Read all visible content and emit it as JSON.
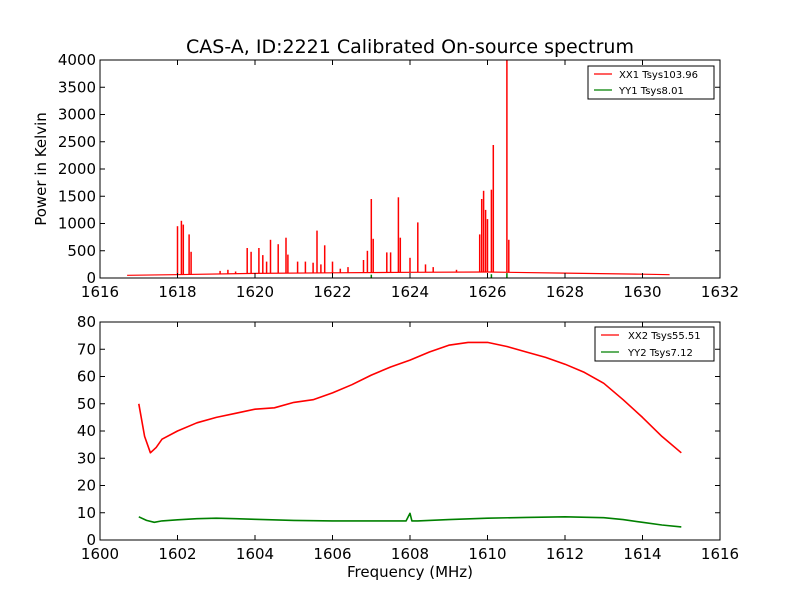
{
  "figure": {
    "title": "CAS-A, ID:2221 Calibrated On-source spectrum",
    "shared_xlabel": "Frequency (MHz)"
  },
  "colors": {
    "xx": "#ff0000",
    "yy": "#008000",
    "axis": "#000000",
    "background": "#ffffff"
  },
  "chart_data": [
    {
      "type": "line",
      "title": "CAS-A, ID:2221 Calibrated On-source spectrum",
      "ylabel": "Power in Kelvin",
      "xlabel": "",
      "xlim": [
        1616,
        1632
      ],
      "ylim": [
        0,
        4000
      ],
      "xticks": [
        "1616",
        "1618",
        "1620",
        "1622",
        "1624",
        "1626",
        "1628",
        "1630",
        "1632"
      ],
      "yticks": [
        "0",
        "500",
        "1000",
        "1500",
        "2000",
        "2500",
        "3000",
        "3500",
        "4000"
      ],
      "grid": false,
      "legend_position": "top-right",
      "baseline": [
        [
          1616.7,
          50
        ],
        [
          1617.9,
          60
        ],
        [
          1620,
          85
        ],
        [
          1622,
          95
        ],
        [
          1624,
          105
        ],
        [
          1626,
          110
        ],
        [
          1628,
          90
        ],
        [
          1630,
          70
        ],
        [
          1630.7,
          60
        ]
      ],
      "series": [
        {
          "name": "XX1 Tsys103.96",
          "color": "#ff0000",
          "peaks": [
            [
              1618.0,
              950
            ],
            [
              1618.1,
              1050
            ],
            [
              1618.15,
              980
            ],
            [
              1618.3,
              800
            ],
            [
              1618.35,
              480
            ],
            [
              1619.1,
              130
            ],
            [
              1619.3,
              150
            ],
            [
              1619.5,
              120
            ],
            [
              1619.8,
              550
            ],
            [
              1619.9,
              480
            ],
            [
              1620.1,
              550
            ],
            [
              1620.2,
              420
            ],
            [
              1620.3,
              300
            ],
            [
              1620.4,
              700
            ],
            [
              1620.6,
              620
            ],
            [
              1620.8,
              740
            ],
            [
              1620.85,
              430
            ],
            [
              1621.1,
              300
            ],
            [
              1621.3,
              300
            ],
            [
              1621.5,
              280
            ],
            [
              1621.6,
              870
            ],
            [
              1621.7,
              250
            ],
            [
              1621.8,
              600
            ],
            [
              1622.0,
              300
            ],
            [
              1622.2,
              170
            ],
            [
              1622.4,
              200
            ],
            [
              1622.8,
              330
            ],
            [
              1622.9,
              500
            ],
            [
              1623.0,
              1450
            ],
            [
              1623.05,
              720
            ],
            [
              1623.4,
              470
            ],
            [
              1623.5,
              470
            ],
            [
              1623.7,
              1480
            ],
            [
              1623.75,
              740
            ],
            [
              1624.0,
              370
            ],
            [
              1624.2,
              1020
            ],
            [
              1624.4,
              250
            ],
            [
              1624.6,
              200
            ],
            [
              1625.2,
              150
            ],
            [
              1625.5,
              120
            ],
            [
              1625.8,
              800
            ],
            [
              1625.85,
              1450
            ],
            [
              1625.9,
              1600
            ],
            [
              1625.95,
              1250
            ],
            [
              1626.0,
              1080
            ],
            [
              1626.1,
              1620
            ],
            [
              1626.15,
              2440
            ],
            [
              1626.5,
              4000
            ],
            [
              1626.55,
              700
            ]
          ]
        },
        {
          "name": "YY1 Tsys8.01",
          "color": "#008000",
          "peaks": [
            [
              1623.0,
              60
            ],
            [
              1626.1,
              70
            ],
            [
              1626.5,
              90
            ]
          ]
        }
      ]
    },
    {
      "type": "line",
      "title": "",
      "ylabel": "",
      "xlabel": "Frequency (MHz)",
      "xlim": [
        1600,
        1616
      ],
      "ylim": [
        0,
        80
      ],
      "xticks": [
        "1600",
        "1602",
        "1604",
        "1606",
        "1608",
        "1610",
        "1612",
        "1614",
        "1616"
      ],
      "yticks": [
        "0",
        "10",
        "20",
        "30",
        "40",
        "50",
        "60",
        "70",
        "80"
      ],
      "grid": false,
      "legend_position": "top-right",
      "series": [
        {
          "name": "XX2 Tsys55.51",
          "color": "#ff0000",
          "x": [
            1601.0,
            1601.15,
            1601.3,
            1601.45,
            1601.6,
            1602.0,
            1602.5,
            1603.0,
            1603.5,
            1604.0,
            1604.5,
            1605.0,
            1605.5,
            1606.0,
            1606.5,
            1607.0,
            1607.5,
            1608.0,
            1608.5,
            1609.0,
            1609.5,
            1610.0,
            1610.5,
            1611.0,
            1611.5,
            1612.0,
            1612.5,
            1613.0,
            1613.5,
            1614.0,
            1614.5,
            1615.0
          ],
          "values": [
            50,
            38,
            32,
            34,
            37,
            40,
            43,
            45,
            46.5,
            48,
            48.5,
            50.5,
            51.5,
            54,
            57,
            60.5,
            63.5,
            66,
            69,
            71.5,
            72.5,
            72.5,
            71,
            69,
            67,
            64.5,
            61.5,
            57.5,
            51.5,
            45,
            38,
            32
          ]
        },
        {
          "name": "YY2 Tsys7.12",
          "color": "#008000",
          "x": [
            1601.0,
            1601.2,
            1601.4,
            1601.6,
            1602.0,
            1602.5,
            1603.0,
            1603.5,
            1604.0,
            1605.0,
            1606.0,
            1607.0,
            1607.9,
            1608.0,
            1608.05,
            1608.2,
            1609.0,
            1610.0,
            1611.0,
            1612.0,
            1613.0,
            1613.5,
            1614.0,
            1614.5,
            1615.0
          ],
          "values": [
            8.5,
            7.2,
            6.5,
            7.0,
            7.4,
            7.8,
            8.0,
            7.8,
            7.6,
            7.2,
            7.0,
            7.0,
            7.0,
            9.8,
            7.0,
            7.0,
            7.5,
            8.0,
            8.3,
            8.5,
            8.2,
            7.5,
            6.5,
            5.5,
            4.8
          ]
        }
      ]
    }
  ]
}
